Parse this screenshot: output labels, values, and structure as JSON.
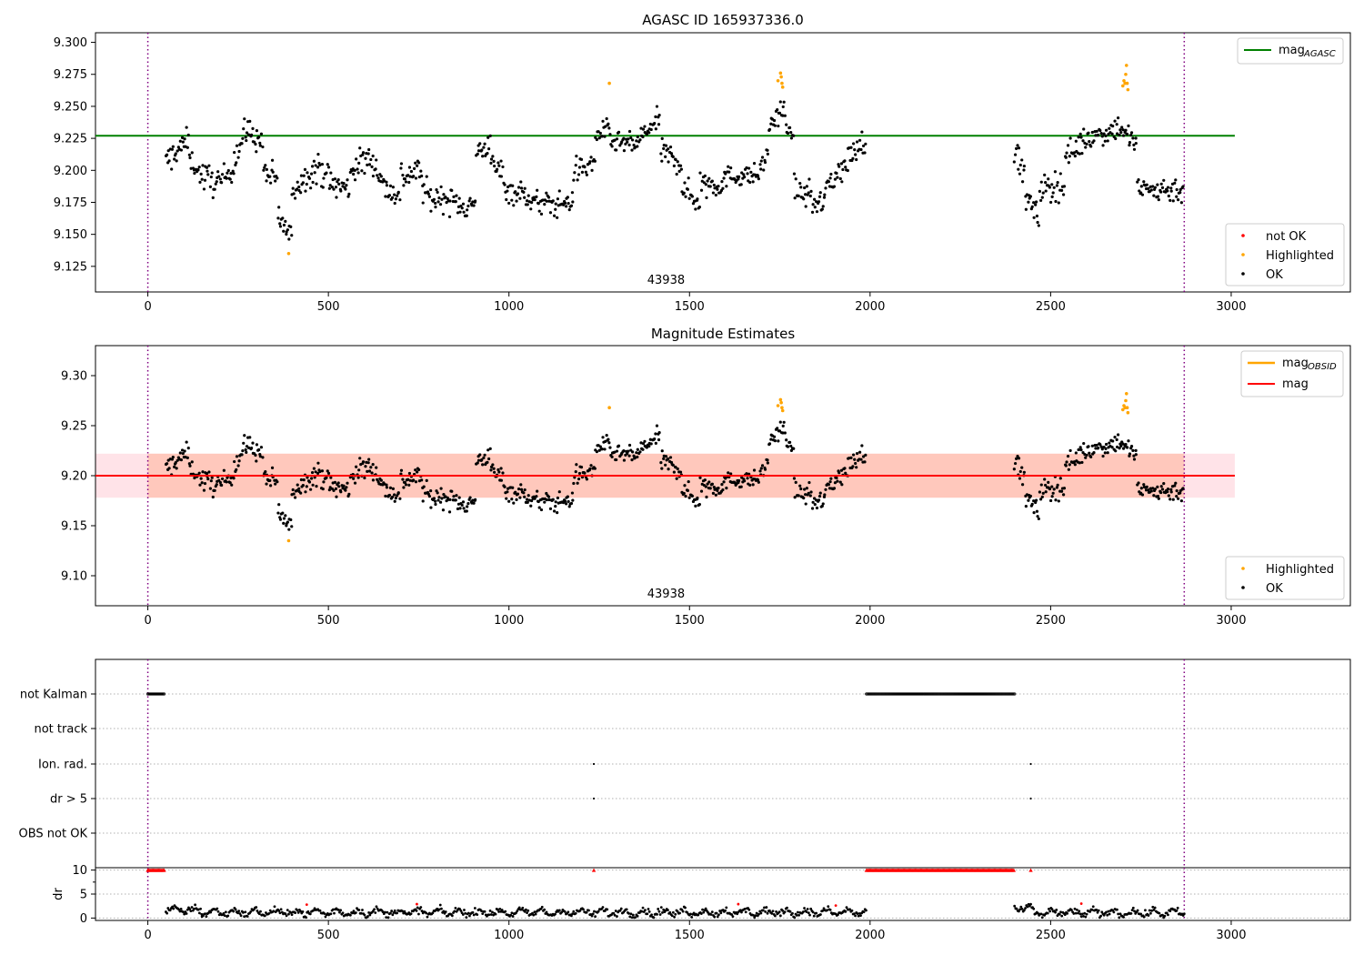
{
  "colors": {
    "ok": "#000000",
    "highlighted": "#ffa500",
    "not_ok": "#ff0000",
    "mag_agasc": "#008000",
    "mag_obsid": "#ffa500",
    "mag": "#ff0000",
    "band": "#ffc0cb",
    "band_obsid": "#ffa07a",
    "obs_boundary": "#800080",
    "grid": "#b0b0b0"
  },
  "chart_data": [
    {
      "type": "scatter",
      "title": "AGASC ID 165937336.0",
      "xlabel": "",
      "ylabel": "",
      "xlim": [
        -145,
        3330
      ],
      "ylim": [
        9.105,
        9.3075
      ],
      "xticks": [
        0,
        500,
        1000,
        1500,
        2000,
        2500,
        3000
      ],
      "yticks": [
        9.125,
        9.15,
        9.175,
        9.2,
        9.225,
        9.25,
        9.275,
        9.3
      ],
      "ytick_labels": [
        "9.125",
        "9.150",
        "9.175",
        "9.200",
        "9.225",
        "9.250",
        "9.275",
        "9.300"
      ],
      "observation_boundaries": [
        0,
        2870
      ],
      "observation_labels": [
        {
          "text": "43938",
          "x": 1435
        }
      ],
      "reference_lines": [
        {
          "name": "mag_AGASC",
          "label_main": "mag",
          "label_sub": "AGASC",
          "y": 9.227,
          "x": [
            -145,
            3010
          ]
        }
      ],
      "series_legend": [
        "not OK",
        "Highlighted",
        "OK"
      ],
      "legend_lines_position": "top-right",
      "legend_points_position": "bottom-right",
      "segments": [
        {
          "x": [
            50,
            75
          ],
          "y": [
            9.205,
            9.215
          ],
          "noise": 0.012
        },
        {
          "x": [
            75,
            115
          ],
          "y": [
            9.214,
            9.224
          ],
          "noise": 0.01
        },
        {
          "x": [
            115,
            150
          ],
          "y": [
            9.21,
            9.195
          ],
          "noise": 0.008
        },
        {
          "x": [
            150,
            200
          ],
          "y": [
            9.195,
            9.19
          ],
          "noise": 0.012
        },
        {
          "x": [
            200,
            240
          ],
          "y": [
            9.19,
            9.205
          ],
          "noise": 0.01
        },
        {
          "x": [
            240,
            280
          ],
          "y": [
            9.21,
            9.235
          ],
          "noise": 0.012
        },
        {
          "x": [
            280,
            320
          ],
          "y": [
            9.23,
            9.22
          ],
          "noise": 0.01
        },
        {
          "x": [
            320,
            360
          ],
          "y": [
            9.2,
            9.19
          ],
          "noise": 0.012
        },
        {
          "x": [
            360,
            400
          ],
          "y": [
            9.165,
            9.145
          ],
          "noise": 0.01
        },
        {
          "x": [
            400,
            440
          ],
          "y": [
            9.185,
            9.195
          ],
          "noise": 0.01
        },
        {
          "x": [
            440,
            500
          ],
          "y": [
            9.2,
            9.2
          ],
          "noise": 0.012
        },
        {
          "x": [
            500,
            560
          ],
          "y": [
            9.19,
            9.185
          ],
          "noise": 0.012
        },
        {
          "x": [
            560,
            620
          ],
          "y": [
            9.2,
            9.21
          ],
          "noise": 0.012
        },
        {
          "x": [
            620,
            660
          ],
          "y": [
            9.21,
            9.185
          ],
          "noise": 0.01
        },
        {
          "x": [
            660,
            700
          ],
          "y": [
            9.185,
            9.18
          ],
          "noise": 0.01
        },
        {
          "x": [
            700,
            760
          ],
          "y": [
            9.195,
            9.2
          ],
          "noise": 0.012
        },
        {
          "x": [
            760,
            800
          ],
          "y": [
            9.185,
            9.175
          ],
          "noise": 0.01
        },
        {
          "x": [
            800,
            880
          ],
          "y": [
            9.18,
            9.172
          ],
          "noise": 0.01
        },
        {
          "x": [
            880,
            910
          ],
          "y": [
            9.17,
            9.175
          ],
          "noise": 0.01
        },
        {
          "x": [
            910,
            950
          ],
          "y": [
            9.215,
            9.22
          ],
          "noise": 0.008
        },
        {
          "x": [
            950,
            990
          ],
          "y": [
            9.205,
            9.195
          ],
          "noise": 0.012
        },
        {
          "x": [
            990,
            1060
          ],
          "y": [
            9.185,
            9.18
          ],
          "noise": 0.01
        },
        {
          "x": [
            1060,
            1140
          ],
          "y": [
            9.175,
            9.173
          ],
          "noise": 0.01
        },
        {
          "x": [
            1140,
            1180
          ],
          "y": [
            9.175,
            9.175
          ],
          "noise": 0.008
        },
        {
          "x": [
            1180,
            1240
          ],
          "y": [
            9.2,
            9.205
          ],
          "noise": 0.01
        },
        {
          "x": [
            1240,
            1280
          ],
          "y": [
            9.228,
            9.232
          ],
          "noise": 0.008
        },
        {
          "x": [
            1280,
            1360
          ],
          "y": [
            9.222,
            9.22
          ],
          "noise": 0.008
        },
        {
          "x": [
            1360,
            1420
          ],
          "y": [
            9.225,
            9.24
          ],
          "noise": 0.01
        },
        {
          "x": [
            1420,
            1480
          ],
          "y": [
            9.215,
            9.205
          ],
          "noise": 0.01
        },
        {
          "x": [
            1480,
            1530
          ],
          "y": [
            9.185,
            9.175
          ],
          "noise": 0.01
        },
        {
          "x": [
            1530,
            1600
          ],
          "y": [
            9.19,
            9.19
          ],
          "noise": 0.012
        },
        {
          "x": [
            1600,
            1700
          ],
          "y": [
            9.195,
            9.197
          ],
          "noise": 0.008
        },
        {
          "x": [
            1700,
            1720
          ],
          "y": [
            9.205,
            9.215
          ],
          "noise": 0.01
        },
        {
          "x": [
            1720,
            1770
          ],
          "y": [
            9.235,
            9.248
          ],
          "noise": 0.01
        },
        {
          "x": [
            1770,
            1790
          ],
          "y": [
            9.23,
            9.228
          ],
          "noise": 0.004
        },
        {
          "x": [
            1790,
            1840
          ],
          "y": [
            9.185,
            9.18
          ],
          "noise": 0.01
        },
        {
          "x": [
            1840,
            1880
          ],
          "y": [
            9.175,
            9.175
          ],
          "noise": 0.01
        },
        {
          "x": [
            1880,
            1940
          ],
          "y": [
            9.19,
            9.205
          ],
          "noise": 0.01
        },
        {
          "x": [
            1940,
            1990
          ],
          "y": [
            9.21,
            9.225
          ],
          "noise": 0.01
        },
        {
          "x": [
            2400,
            2430
          ],
          "y": [
            9.215,
            9.195
          ],
          "noise": 0.012
        },
        {
          "x": [
            2430,
            2470
          ],
          "y": [
            9.18,
            9.16
          ],
          "noise": 0.01
        },
        {
          "x": [
            2470,
            2540
          ],
          "y": [
            9.185,
            9.19
          ],
          "noise": 0.012
        },
        {
          "x": [
            2540,
            2600
          ],
          "y": [
            9.21,
            9.225
          ],
          "noise": 0.01
        },
        {
          "x": [
            2600,
            2700
          ],
          "y": [
            9.225,
            9.235
          ],
          "noise": 0.01
        },
        {
          "x": [
            2700,
            2740
          ],
          "y": [
            9.23,
            9.22
          ],
          "noise": 0.01
        },
        {
          "x": [
            2740,
            2790
          ],
          "y": [
            9.185,
            9.185
          ],
          "noise": 0.01
        },
        {
          "x": [
            2790,
            2870
          ],
          "y": [
            9.185,
            9.185
          ],
          "noise": 0.01
        }
      ],
      "highlighted_points": [
        {
          "x": 390,
          "y": 9.135
        },
        {
          "x": 1278,
          "y": 9.268
        },
        {
          "x": 1745,
          "y": 9.27
        },
        {
          "x": 1752,
          "y": 9.276
        },
        {
          "x": 1754,
          "y": 9.273
        },
        {
          "x": 1756,
          "y": 9.268
        },
        {
          "x": 1758,
          "y": 9.265
        },
        {
          "x": 2700,
          "y": 9.266
        },
        {
          "x": 2703,
          "y": 9.27
        },
        {
          "x": 2706,
          "y": 9.268
        },
        {
          "x": 2708,
          "y": 9.275
        },
        {
          "x": 2710,
          "y": 9.282
        },
        {
          "x": 2712,
          "y": 9.268
        },
        {
          "x": 2714,
          "y": 9.263
        }
      ]
    },
    {
      "type": "scatter",
      "title": "Magnitude Estimates",
      "xlabel": "",
      "ylabel": "",
      "xlim": [
        -145,
        3330
      ],
      "ylim": [
        9.07,
        9.33
      ],
      "xticks": [
        0,
        500,
        1000,
        1500,
        2000,
        2500,
        3000
      ],
      "yticks": [
        9.1,
        9.15,
        9.2,
        9.25,
        9.3
      ],
      "ytick_labels": [
        "9.10",
        "9.15",
        "9.20",
        "9.25",
        "9.30"
      ],
      "observation_boundaries": [
        0,
        2870
      ],
      "observation_labels": [
        {
          "text": "43938",
          "x": 1435
        }
      ],
      "reference_lines": [
        {
          "name": "mag_OBSID",
          "label_main": "mag",
          "label_sub": "OBSID",
          "y": 9.2,
          "x": [
            0,
            2870
          ]
        },
        {
          "name": "mag",
          "label_main": "mag",
          "y": 9.2,
          "x": [
            -145,
            3010
          ]
        }
      ],
      "bands": [
        {
          "name": "mag",
          "y": [
            9.178,
            9.222
          ],
          "x": [
            -145,
            3010
          ]
        },
        {
          "name": "mag_OBSID",
          "y": [
            9.178,
            9.222
          ],
          "x": [
            0,
            2870
          ]
        }
      ],
      "series_legend": [
        "Highlighted",
        "OK"
      ],
      "legend_lines_position": "top-right",
      "legend_points_position": "bottom-right",
      "same_points_as_panel": 0
    },
    {
      "type": "scatter",
      "title": "",
      "xlabel": "",
      "ylabel": "",
      "xlim": [
        -145,
        3330
      ],
      "observation_boundaries": [
        0,
        2870
      ],
      "flag_rows": [
        "not Kalman",
        "not track",
        "Ion. rad.",
        "dr > 5",
        "OBS not OK"
      ],
      "flag_segments": [
        {
          "row": "not Kalman",
          "x": [
            0,
            45
          ]
        },
        {
          "row": "not Kalman",
          "x": [
            1990,
            2400
          ]
        }
      ],
      "flag_points": [
        {
          "row": "Ion. rad.",
          "x": 1235
        },
        {
          "row": "Ion. rad.",
          "x": 2445
        },
        {
          "row": "dr > 5",
          "x": 1235
        },
        {
          "row": "dr > 5",
          "x": 2445
        }
      ]
    },
    {
      "type": "scatter",
      "title": "",
      "xlabel": "",
      "ylabel": "dr",
      "xlim": [
        -145,
        3330
      ],
      "ylim": [
        -0.5,
        10.5
      ],
      "xticks": [
        0,
        500,
        1000,
        1500,
        2000,
        2500,
        3000
      ],
      "yticks": [
        0,
        5,
        10
      ],
      "ytick_labels": [
        "0",
        "5",
        "10"
      ],
      "observation_boundaries": [
        0,
        2870
      ],
      "clipped_value": 10,
      "clipped_segments": [
        {
          "x": [
            0,
            45
          ]
        },
        {
          "x": [
            1990,
            2400
          ]
        }
      ],
      "clipped_points": [
        1235,
        2445
      ],
      "dr_segments": [
        {
          "x": [
            50,
            150
          ],
          "y": 1.6
        },
        {
          "x": [
            150,
            1990
          ],
          "y": 1.2
        },
        {
          "x": [
            2400,
            2450
          ],
          "y": 2.0
        },
        {
          "x": [
            2450,
            2870
          ],
          "y": 1.1
        }
      ],
      "dr_red_points": [
        {
          "x": 440,
          "y": 2.8
        },
        {
          "x": 745,
          "y": 2.9
        },
        {
          "x": 1635,
          "y": 2.9
        },
        {
          "x": 1905,
          "y": 2.6
        },
        {
          "x": 2585,
          "y": 3.0
        }
      ]
    }
  ]
}
